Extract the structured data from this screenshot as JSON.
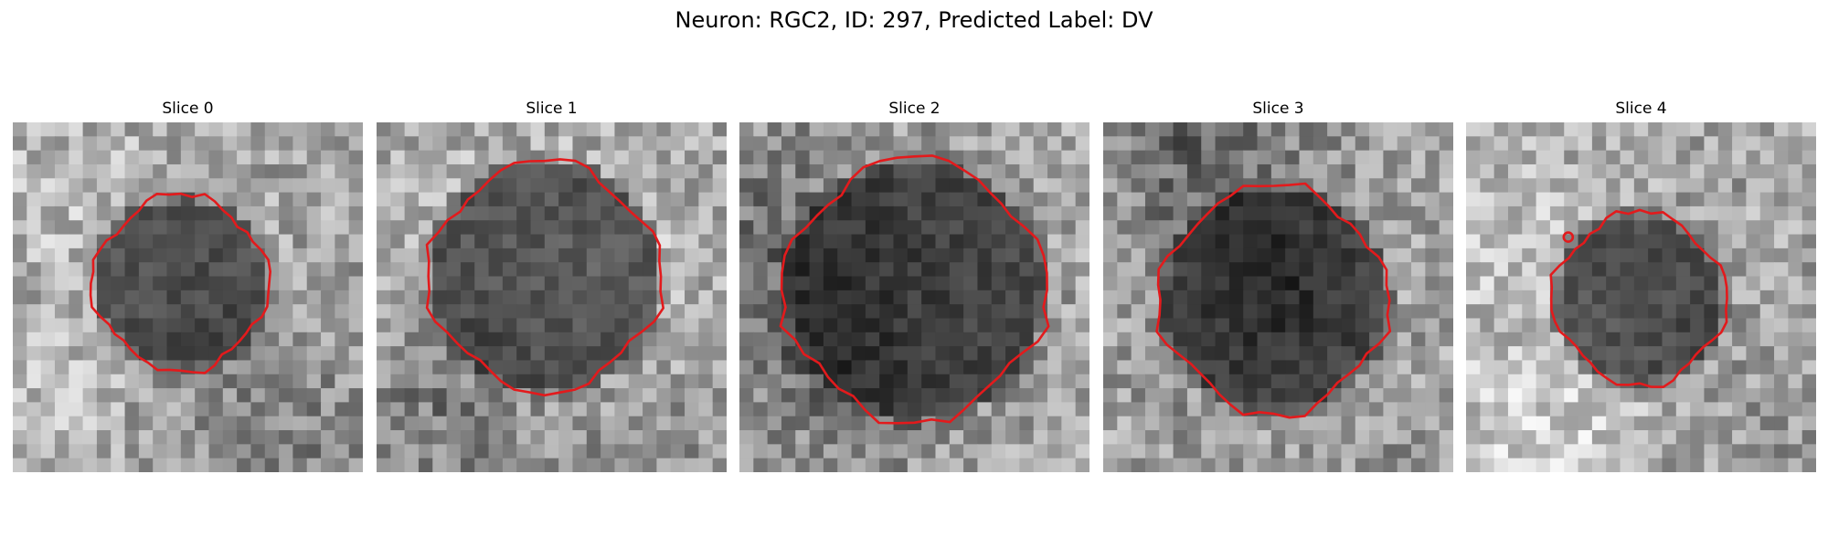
{
  "figure": {
    "title": "Neuron: RGC2, ID: 297, Predicted Label: DV",
    "contour_color": "#e31a1c"
  },
  "panels": [
    {
      "title": "Slice 0",
      "seed": 11,
      "cx": 12.0,
      "cy": 11.5,
      "r": 6.3,
      "dot": null
    },
    {
      "title": "Slice 1",
      "seed": 23,
      "cx": 12.0,
      "cy": 11.0,
      "r": 8.3,
      "dot": null
    },
    {
      "title": "Slice 2",
      "seed": 37,
      "cx": 12.5,
      "cy": 12.0,
      "r": 9.4,
      "dot": null
    },
    {
      "title": "Slice 3",
      "seed": 49,
      "cx": 12.2,
      "cy": 12.7,
      "r": 8.2,
      "dot": null
    },
    {
      "title": "Slice 4",
      "seed": 61,
      "cx": 12.4,
      "cy": 12.6,
      "r": 6.2,
      "dot": [
        7.3,
        8.2
      ]
    }
  ]
}
